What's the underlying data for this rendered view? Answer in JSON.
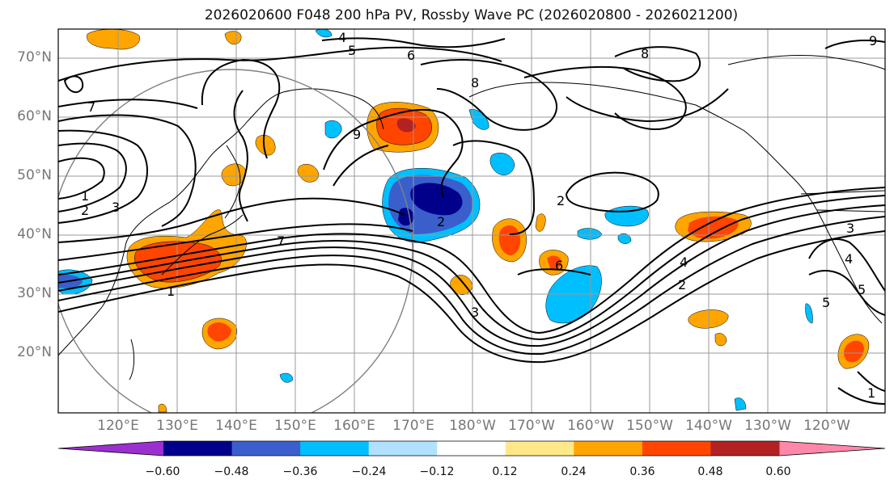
{
  "title": "2026020600 F048 200 hPa PV, Rossby Wave PC (2026020800 - 2026021200)",
  "lat_labels": [
    "70°N",
    "60°N",
    "50°N",
    "40°N",
    "30°N",
    "20°N"
  ],
  "lon_labels": [
    "120°E",
    "130°E",
    "140°E",
    "150°E",
    "160°E",
    "170°E",
    "180°W",
    "170°W",
    "160°W",
    "150°W",
    "140°W",
    "130°W",
    "120°W"
  ],
  "colorbar": {
    "ticks": [
      "−0.60",
      "−0.48",
      "−0.36",
      "−0.24",
      "−0.12",
      "0.12",
      "0.24",
      "0.36",
      "0.48",
      "0.60"
    ],
    "colors": [
      "#9b30d0",
      "#00008b",
      "#3a5fcd",
      "#00bfff",
      "#b0e2ff",
      "#ffffff",
      "#ffe88a",
      "#ffa500",
      "#ff4500",
      "#b22222",
      "#ff88aa"
    ]
  },
  "contour_labels": [
    "4",
    "5",
    "6",
    "8",
    "7",
    "1",
    "2",
    "3",
    "1",
    "7",
    "2",
    "3",
    "4",
    "2",
    "5",
    "8",
    "9",
    "6",
    "2",
    "3",
    "4",
    "5",
    "1",
    "9"
  ],
  "shading_colors": {
    "yellow": "#ffe88a",
    "orange": "#ffa500",
    "redorange": "#ff4500",
    "darkred": "#b22222",
    "lightblue": "#b0e2ff",
    "cyan": "#00bfff",
    "blue": "#3a5fcd",
    "navy": "#00008b"
  }
}
